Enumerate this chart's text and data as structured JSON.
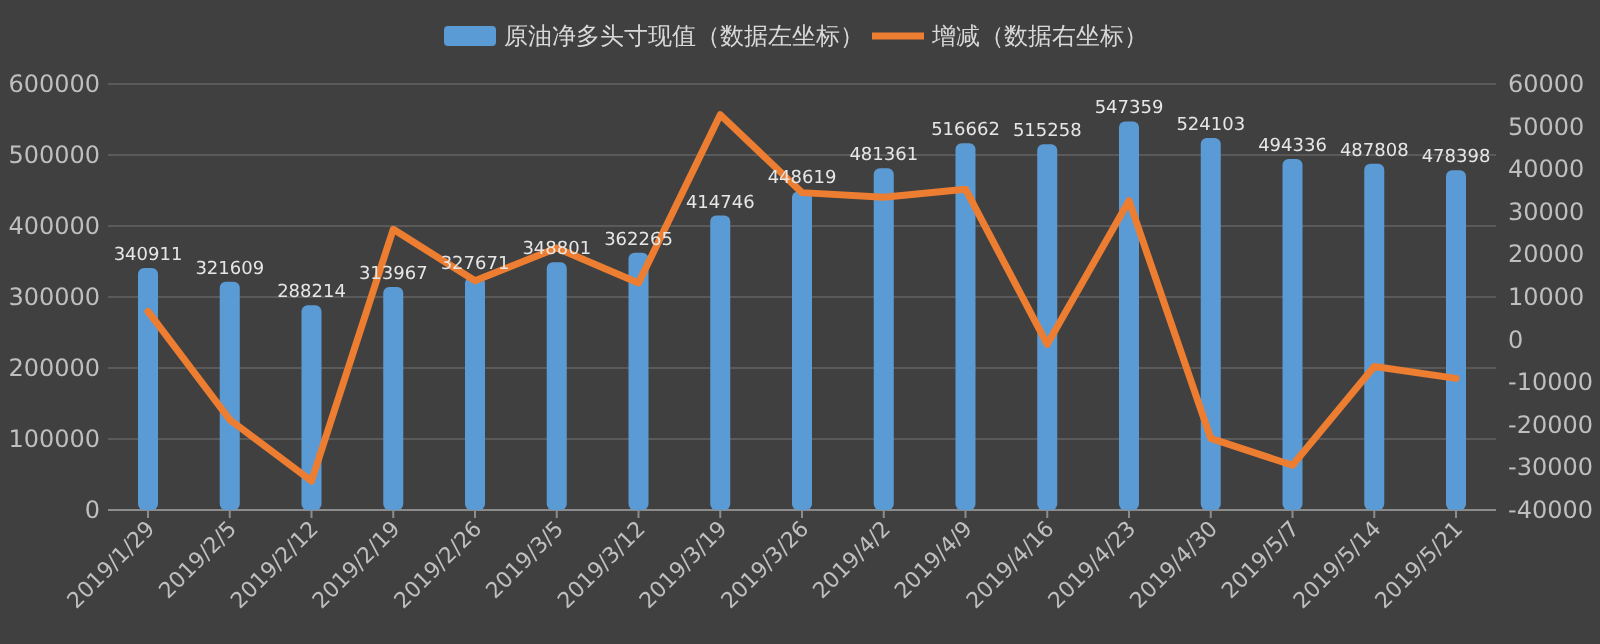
{
  "chart_data": {
    "type": "bar",
    "categories": [
      "2019/1/29",
      "2019/2/5",
      "2019/2/12",
      "2019/2/19",
      "2019/2/26",
      "2019/3/5",
      "2019/3/12",
      "2019/3/19",
      "2019/3/26",
      "2019/4/2",
      "2019/4/9",
      "2019/4/16",
      "2019/4/23",
      "2019/4/30",
      "2019/5/7",
      "2019/5/14",
      "2019/5/21"
    ],
    "series": [
      {
        "name": "原油净多头寸现值（数据左坐标）",
        "color": "#5b9bd5",
        "values": [
          340911,
          321609,
          288214,
          313967,
          327671,
          348801,
          362265,
          414746,
          448619,
          481361,
          516662,
          515258,
          547359,
          524103,
          494336,
          487808,
          478398
        ],
        "value_labels": [
          "340911",
          "321609",
          "288214",
          "313967",
          "327671",
          "348801",
          "362265",
          "414746",
          "448619",
          "481361",
          "516662",
          "515258",
          "547359",
          "524103",
          "494336",
          "487808",
          "478398"
        ]
      },
      {
        "name": "增减（数据右坐标）",
        "type": "line",
        "axis": "y2",
        "color": "#ed7d31",
        "values": [
          6600,
          -18800,
          -33200,
          25900,
          13800,
          21500,
          13300,
          52800,
          34500,
          33400,
          35300,
          -1100,
          32600,
          -23200,
          -29500,
          -6300,
          -9100
        ]
      }
    ],
    "ylim": [
      0,
      600000
    ],
    "yticks": [
      0,
      100000,
      200000,
      300000,
      400000,
      500000,
      600000
    ],
    "y2lim": [
      -40000,
      60000
    ],
    "y2ticks": [
      -40000,
      -30000,
      -20000,
      -10000,
      0,
      10000,
      20000,
      30000,
      40000,
      50000,
      60000
    ],
    "grid": "y",
    "legend": "top",
    "marker": "none",
    "line_style": "solid"
  }
}
